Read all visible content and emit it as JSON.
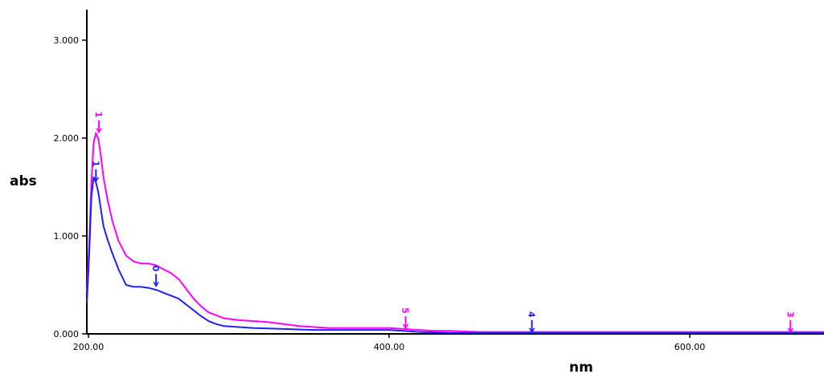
{
  "chart_data": {
    "type": "line",
    "title": "",
    "xlabel": "nm",
    "ylabel": "abs",
    "xlim": [
      200,
      700
    ],
    "ylim": [
      0,
      3.2
    ],
    "x_ticks": [
      200,
      400,
      600
    ],
    "x_tick_labels": [
      "200.00",
      "400.00",
      "600.00"
    ],
    "y_ticks": [
      0,
      1,
      2,
      3
    ],
    "y_tick_labels": [
      "0.000",
      "1.000",
      "2.000",
      "3.000"
    ],
    "grid": false,
    "series": [
      {
        "color": "#ff00ff",
        "x": [
          199,
          200.5,
          202,
          203.5,
          205,
          206.5,
          208,
          210,
          213,
          216,
          220,
          225,
          230,
          235,
          240,
          245,
          250,
          255,
          260,
          265,
          270,
          275,
          280,
          285,
          290,
          300,
          310,
          320,
          330,
          340,
          350,
          360,
          370,
          380,
          390,
          400,
          410,
          420,
          430,
          440,
          460,
          480,
          500,
          550,
          600,
          650,
          700
        ],
        "y": [
          0.42,
          0.9,
          1.55,
          1.95,
          2.05,
          2.0,
          1.85,
          1.6,
          1.35,
          1.15,
          0.95,
          0.8,
          0.74,
          0.72,
          0.72,
          0.7,
          0.66,
          0.62,
          0.56,
          0.46,
          0.36,
          0.28,
          0.22,
          0.19,
          0.16,
          0.14,
          0.13,
          0.12,
          0.1,
          0.08,
          0.07,
          0.06,
          0.06,
          0.06,
          0.06,
          0.06,
          0.05,
          0.04,
          0.03,
          0.03,
          0.02,
          0.02,
          0.02,
          0.02,
          0.02,
          0.02,
          0.02
        ]
      },
      {
        "color": "#2020ff",
        "x": [
          199,
          200.5,
          202,
          203.5,
          205,
          206.5,
          208,
          210,
          213,
          216,
          220,
          225,
          230,
          235,
          240,
          245,
          250,
          255,
          260,
          265,
          270,
          275,
          280,
          285,
          290,
          300,
          310,
          320,
          330,
          340,
          350,
          360,
          370,
          380,
          390,
          400,
          410,
          420,
          430,
          440,
          460,
          480,
          500,
          550,
          600,
          650,
          700
        ],
        "y": [
          0.32,
          0.8,
          1.4,
          1.6,
          1.55,
          1.45,
          1.3,
          1.1,
          0.95,
          0.82,
          0.66,
          0.5,
          0.48,
          0.48,
          0.47,
          0.45,
          0.42,
          0.39,
          0.36,
          0.3,
          0.24,
          0.18,
          0.13,
          0.1,
          0.08,
          0.07,
          0.06,
          0.055,
          0.05,
          0.045,
          0.04,
          0.04,
          0.04,
          0.04,
          0.04,
          0.04,
          0.03,
          0.02,
          0.015,
          0.01,
          0.01,
          0.01,
          0.01,
          0.01,
          0.01,
          0.01,
          0.01
        ]
      }
    ],
    "peaks": [
      {
        "label": "1",
        "x": 205,
        "y": 1.55,
        "color": "#2020ff"
      },
      {
        "label": "1",
        "x": 207,
        "y": 2.05,
        "color": "#ff00ff"
      },
      {
        "label": "0",
        "x": 245,
        "y": 0.48,
        "color": "#2020ff"
      },
      {
        "label": "5",
        "x": 411,
        "y": 0.05,
        "color": "#ff00ff"
      },
      {
        "label": "4",
        "x": 495,
        "y": 0.01,
        "color": "#2020ff"
      },
      {
        "label": "3",
        "x": 667,
        "y": 0.01,
        "color": "#ff00ff"
      }
    ]
  }
}
